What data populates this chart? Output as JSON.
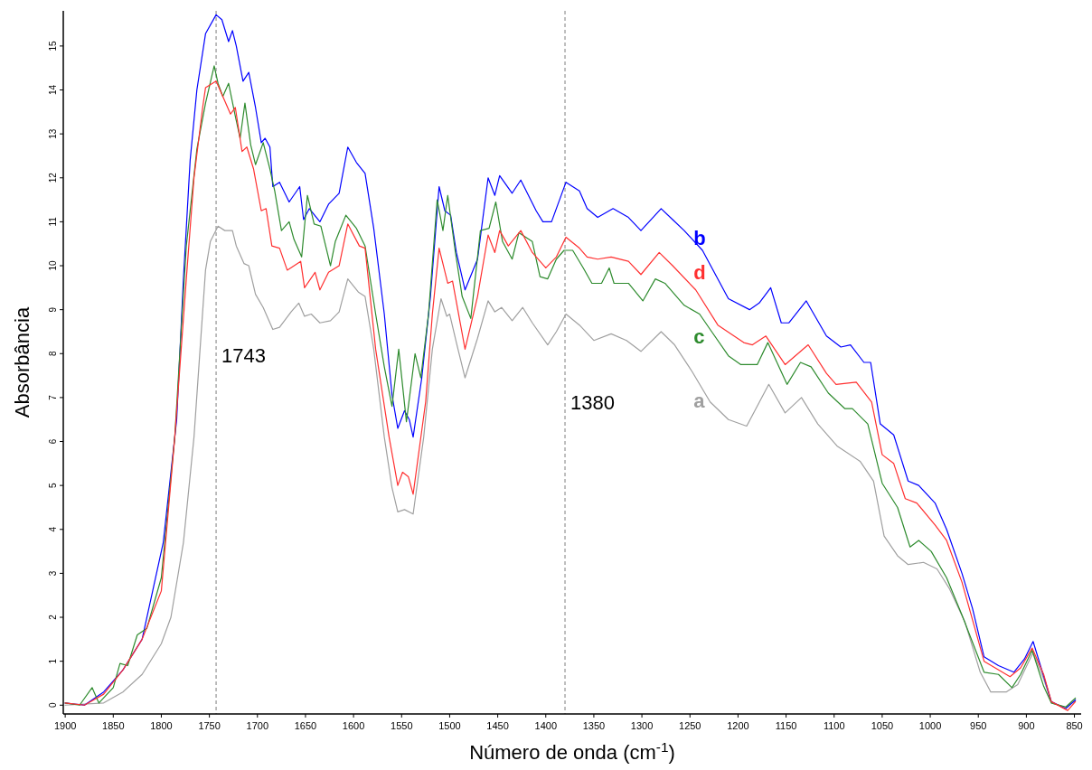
{
  "chart_data": {
    "type": "line",
    "xlabel": "Número de onda (cm$^{-1}$)",
    "ylabel": "Absorbância",
    "xlim": [
      1902,
      843
    ],
    "ylim": [
      -0.2,
      15.8
    ],
    "xticks": [
      1900,
      1850,
      1800,
      1750,
      1700,
      1650,
      1600,
      1550,
      1500,
      1450,
      1400,
      1350,
      1300,
      1250,
      1200,
      1150,
      1100,
      1050,
      1000,
      950,
      900,
      850
    ],
    "yticks": [
      0,
      1,
      2,
      3,
      4,
      5,
      6,
      7,
      8,
      9,
      10,
      11,
      12,
      13,
      14,
      15
    ],
    "grid": false,
    "marker": "none",
    "line_style": "solid",
    "ref_lines": [
      {
        "axis": "x",
        "value": 1743,
        "label": "1743",
        "color": "#7f7f7f",
        "line_style": "dashed"
      },
      {
        "axis": "x",
        "value": 1380,
        "label": "1380",
        "color": "#7f7f7f",
        "line_style": "dashed"
      }
    ],
    "series": [
      {
        "name": "a",
        "color": "#a0a0a0",
        "x": [
          1900,
          1860,
          1840,
          1820,
          1800,
          1790,
          1777,
          1766,
          1754,
          1749,
          1741,
          1734,
          1726,
          1722,
          1714,
          1709,
          1702,
          1694,
          1684,
          1677,
          1665,
          1657,
          1651,
          1644,
          1635,
          1624,
          1615,
          1606,
          1595,
          1588,
          1579,
          1568,
          1560,
          1554,
          1547,
          1538,
          1527,
          1518,
          1509,
          1503,
          1500,
          1493,
          1484,
          1471,
          1460,
          1453,
          1446,
          1435,
          1424,
          1414,
          1398,
          1389,
          1379,
          1365,
          1350,
          1332,
          1316,
          1301,
          1280,
          1266,
          1248,
          1229,
          1210,
          1191,
          1168,
          1151,
          1134,
          1117,
          1097,
          1073,
          1059,
          1048,
          1034,
          1023,
          1007,
          993,
          980,
          964,
          948,
          937,
          921,
          909,
          893,
          882,
          874,
          859,
          849
        ],
        "values": [
          0.0,
          0.05,
          0.3,
          0.7,
          1.4,
          2.0,
          3.7,
          6.1,
          9.9,
          10.55,
          10.9,
          10.8,
          10.8,
          10.45,
          10.05,
          10.0,
          9.35,
          9.05,
          8.55,
          8.6,
          8.95,
          9.15,
          8.85,
          8.9,
          8.7,
          8.75,
          8.95,
          9.7,
          9.4,
          9.3,
          8.1,
          6.1,
          4.95,
          4.4,
          4.45,
          4.35,
          6.1,
          8.1,
          9.25,
          8.85,
          8.9,
          8.25,
          7.45,
          8.35,
          9.2,
          8.95,
          9.05,
          8.75,
          9.05,
          8.7,
          8.2,
          8.5,
          8.9,
          8.65,
          8.3,
          8.45,
          8.3,
          8.05,
          8.5,
          8.2,
          7.6,
          6.9,
          6.5,
          6.35,
          7.3,
          6.65,
          7.0,
          6.4,
          5.9,
          5.55,
          5.1,
          3.85,
          3.4,
          3.2,
          3.25,
          3.1,
          2.65,
          1.9,
          0.75,
          0.3,
          0.3,
          0.47,
          1.2,
          0.6,
          0.05,
          -0.05,
          0.1
        ]
      },
      {
        "name": "b",
        "color": "#0000ff",
        "x": [
          1900,
          1880,
          1860,
          1840,
          1820,
          1798,
          1784,
          1777,
          1770,
          1763,
          1754,
          1743,
          1737,
          1730,
          1726,
          1722,
          1715,
          1709,
          1702,
          1696,
          1692,
          1687,
          1684,
          1677,
          1667,
          1656,
          1652,
          1646,
          1635,
          1626,
          1615,
          1606,
          1597,
          1588,
          1579,
          1568,
          1560,
          1554,
          1547,
          1542,
          1538,
          1529,
          1520,
          1511,
          1505,
          1499,
          1493,
          1484,
          1471,
          1460,
          1453,
          1448,
          1435,
          1426,
          1410,
          1403,
          1394,
          1379,
          1365,
          1357,
          1346,
          1330,
          1314,
          1301,
          1280,
          1268,
          1256,
          1237,
          1210,
          1188,
          1178,
          1166,
          1155,
          1147,
          1129,
          1108,
          1093,
          1083,
          1069,
          1062,
          1052,
          1038,
          1023,
          1012,
          995,
          983,
          967,
          956,
          944,
          929,
          913,
          902,
          893,
          886,
          874,
          859,
          849
        ],
        "values": [
          0.05,
          0.0,
          0.3,
          0.8,
          1.5,
          3.7,
          6.5,
          9.7,
          12.4,
          14.0,
          15.28,
          15.71,
          15.6,
          15.1,
          15.35,
          15.0,
          14.2,
          14.4,
          13.6,
          12.8,
          12.9,
          12.7,
          11.8,
          11.9,
          11.45,
          11.8,
          11.05,
          11.3,
          11.0,
          11.4,
          11.65,
          12.7,
          12.35,
          12.1,
          10.85,
          8.9,
          7.06,
          6.3,
          6.7,
          6.5,
          6.1,
          7.45,
          9.3,
          11.8,
          11.25,
          11.15,
          10.3,
          9.45,
          10.15,
          12.0,
          11.6,
          12.05,
          11.65,
          11.95,
          11.25,
          11.0,
          11.0,
          11.9,
          11.7,
          11.3,
          11.1,
          11.3,
          11.1,
          10.8,
          11.3,
          11.05,
          10.8,
          10.35,
          9.25,
          9.0,
          9.15,
          9.5,
          8.7,
          8.7,
          9.2,
          8.4,
          8.15,
          8.2,
          7.8,
          7.8,
          6.4,
          6.15,
          5.1,
          5.0,
          4.6,
          4.0,
          3.0,
          2.2,
          1.1,
          0.9,
          0.75,
          1.05,
          1.45,
          0.95,
          0.08,
          -0.08,
          0.12
        ]
      },
      {
        "name": "c",
        "color": "#2e8b2e",
        "x": [
          1900,
          1885,
          1872,
          1865,
          1850,
          1843,
          1835,
          1825,
          1815,
          1800,
          1786,
          1774,
          1763,
          1754,
          1745,
          1741,
          1736,
          1730,
          1723,
          1718,
          1713,
          1707,
          1702,
          1694,
          1687,
          1682,
          1675,
          1667,
          1662,
          1654,
          1648,
          1641,
          1634,
          1624,
          1619,
          1608,
          1597,
          1588,
          1577,
          1568,
          1560,
          1553,
          1545,
          1536,
          1530,
          1522,
          1513,
          1507,
          1502,
          1494,
          1487,
          1478,
          1468,
          1459,
          1452,
          1445,
          1435,
          1428,
          1414,
          1406,
          1398,
          1389,
          1381,
          1372,
          1361,
          1352,
          1342,
          1334,
          1329,
          1314,
          1299,
          1286,
          1276,
          1256,
          1240,
          1229,
          1210,
          1197,
          1180,
          1169,
          1149,
          1135,
          1124,
          1106,
          1089,
          1081,
          1065,
          1050,
          1034,
          1021,
          1012,
          999,
          983,
          967,
          944,
          929,
          915,
          906,
          894,
          882,
          874,
          859,
          849
        ],
        "values": [
          0.05,
          0.0,
          0.4,
          0.05,
          0.4,
          0.95,
          0.9,
          1.6,
          1.75,
          2.9,
          6.1,
          10.45,
          12.65,
          13.7,
          14.55,
          14.15,
          13.85,
          14.15,
          13.4,
          12.9,
          13.7,
          12.75,
          12.3,
          12.8,
          12.2,
          11.7,
          10.8,
          11.0,
          10.6,
          10.2,
          11.6,
          10.95,
          10.9,
          10.0,
          10.55,
          11.15,
          10.85,
          10.45,
          8.9,
          7.7,
          6.8,
          8.1,
          6.45,
          8.0,
          7.45,
          8.9,
          11.5,
          10.8,
          11.6,
          10.3,
          9.3,
          8.8,
          10.8,
          10.85,
          11.45,
          10.55,
          10.15,
          10.75,
          10.55,
          9.75,
          9.7,
          10.15,
          10.35,
          10.35,
          9.95,
          9.6,
          9.6,
          9.95,
          9.6,
          9.6,
          9.2,
          9.7,
          9.6,
          9.1,
          8.9,
          8.55,
          7.95,
          7.75,
          7.75,
          8.25,
          7.3,
          7.8,
          7.7,
          7.1,
          6.75,
          6.75,
          6.4,
          5.05,
          4.5,
          3.6,
          3.75,
          3.5,
          2.9,
          2.05,
          0.75,
          0.7,
          0.4,
          0.7,
          1.25,
          0.43,
          0.05,
          -0.04,
          0.16
        ]
      },
      {
        "name": "d",
        "color": "#ff3030",
        "x": [
          1900,
          1880,
          1860,
          1840,
          1820,
          1800,
          1786,
          1774,
          1766,
          1757,
          1754,
          1743,
          1736,
          1728,
          1723,
          1716,
          1711,
          1704,
          1696,
          1691,
          1685,
          1677,
          1669,
          1655,
          1651,
          1640,
          1635,
          1626,
          1615,
          1606,
          1594,
          1588,
          1577,
          1563,
          1554,
          1549,
          1543,
          1538,
          1525,
          1518,
          1511,
          1502,
          1497,
          1484,
          1471,
          1460,
          1453,
          1448,
          1439,
          1426,
          1414,
          1400,
          1389,
          1379,
          1365,
          1357,
          1346,
          1332,
          1314,
          1301,
          1282,
          1268,
          1244,
          1221,
          1194,
          1185,
          1171,
          1151,
          1127,
          1108,
          1098,
          1077,
          1061,
          1050,
          1038,
          1026,
          1014,
          995,
          983,
          967,
          944,
          917,
          906,
          894,
          882,
          874,
          857,
          849
        ],
        "values": [
          0.05,
          0.0,
          0.25,
          0.8,
          1.5,
          2.6,
          6.1,
          9.7,
          12.0,
          13.6,
          14.05,
          14.2,
          13.85,
          13.45,
          13.6,
          12.6,
          12.7,
          12.2,
          11.25,
          11.3,
          10.45,
          10.4,
          9.9,
          10.1,
          9.5,
          9.85,
          9.45,
          9.85,
          10.0,
          10.95,
          10.45,
          10.4,
          8.1,
          6.1,
          5.0,
          5.3,
          5.2,
          4.8,
          6.9,
          8.9,
          10.4,
          9.6,
          9.65,
          8.1,
          9.3,
          10.7,
          10.3,
          10.8,
          10.45,
          10.8,
          10.3,
          9.95,
          10.2,
          10.65,
          10.4,
          10.2,
          10.15,
          10.2,
          10.1,
          9.8,
          10.3,
          10.0,
          9.45,
          8.65,
          8.25,
          8.2,
          8.4,
          7.75,
          8.2,
          7.55,
          7.3,
          7.35,
          6.9,
          5.7,
          5.5,
          4.7,
          4.6,
          4.1,
          3.75,
          2.8,
          1.0,
          0.65,
          0.85,
          1.3,
          0.7,
          0.08,
          -0.12,
          0.08
        ]
      }
    ]
  }
}
